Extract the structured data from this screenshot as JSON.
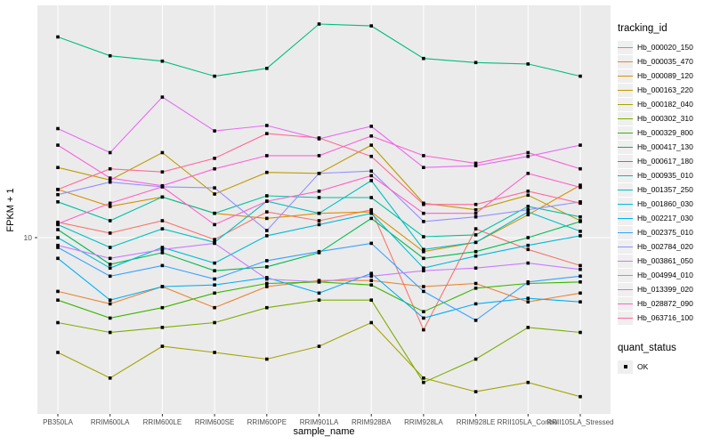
{
  "chart_data": {
    "type": "line",
    "title": "",
    "xlabel": "sample_name",
    "ylabel": "FPKM + 1",
    "y_scale": "log10",
    "ylim": [
      1.5,
      110
    ],
    "y_ticks": [
      {
        "label": "10",
        "value": 10
      }
    ],
    "grid": "major-only, white on grey panel",
    "legend_position": "right",
    "categories": [
      "PB350LA",
      "RRIM600LA",
      "RRIM600LE",
      "RRIM600SE",
      "RRIM600PE",
      "RRIM901LA",
      "RRIM928BA",
      "RRIM928LA",
      "RRIM928LE",
      "RRII105LA_Control",
      "RRII105LA_Stressed"
    ],
    "series": [
      {
        "name": "Hb_000020_150",
        "color": "#F8766D",
        "values": [
          11.8,
          10.5,
          12.0,
          9.8,
          13.2,
          12.0,
          13.5,
          3.7,
          11.0,
          8.8,
          7.4
        ]
      },
      {
        "name": "Hb_000035_470",
        "color": "#EA8331",
        "values": [
          5.6,
          4.9,
          5.9,
          4.7,
          5.9,
          6.3,
          6.3,
          5.9,
          6.1,
          5.0,
          5.5
        ]
      },
      {
        "name": "Hb_000089_120",
        "color": "#D89000",
        "values": [
          16.8,
          14.0,
          15.5,
          13.0,
          12.3,
          13.0,
          13.2,
          8.6,
          9.5,
          12.8,
          17.6
        ]
      },
      {
        "name": "Hb_000163_220",
        "color": "#C09B00",
        "values": [
          21.3,
          18.6,
          25.0,
          16.0,
          20.2,
          20.0,
          27.1,
          14.5,
          13.5,
          15.8,
          12.0
        ]
      },
      {
        "name": "Hb_000182_040",
        "color": "#A3A500",
        "values": [
          2.9,
          2.2,
          3.1,
          2.9,
          2.7,
          3.1,
          4.0,
          2.2,
          1.9,
          2.1,
          1.8
        ]
      },
      {
        "name": "Hb_000302_310",
        "color": "#7CAE00",
        "values": [
          4.0,
          3.6,
          3.8,
          4.0,
          4.7,
          5.1,
          5.1,
          2.1,
          2.7,
          3.8,
          3.6
        ]
      },
      {
        "name": "Hb_000329_800",
        "color": "#39B600",
        "values": [
          5.1,
          4.2,
          4.7,
          5.5,
          6.1,
          6.2,
          6.0,
          4.5,
          5.8,
          6.1,
          6.2
        ]
      },
      {
        "name": "Hb_000417_130",
        "color": "#00BB4E",
        "values": [
          10.9,
          7.5,
          8.5,
          7.0,
          7.3,
          8.5,
          12.3,
          8.0,
          8.6,
          10.0,
          11.9
        ]
      },
      {
        "name": "Hb_000617_180",
        "color": "#00BF7D",
        "values": [
          87,
          71,
          67,
          57,
          62,
          100,
          98,
          69,
          66,
          65,
          57
        ]
      },
      {
        "name": "Hb_000935_010",
        "color": "#00C1A3",
        "values": [
          14.7,
          12.0,
          15.5,
          13.0,
          15.7,
          15.4,
          15.4,
          10.1,
          10.3,
          14.0,
          12.5
        ]
      },
      {
        "name": "Hb_001357_250",
        "color": "#00BFC4",
        "values": [
          11.5,
          9.0,
          11.0,
          9.5,
          14.8,
          13.0,
          18.5,
          8.8,
          9.5,
          13.2,
          10.7
        ]
      },
      {
        "name": "Hb_001860_030",
        "color": "#00BBDA",
        "values": [
          10.0,
          7.2,
          9.0,
          7.6,
          10.2,
          11.5,
          13.0,
          7.2,
          8.2,
          9.2,
          10.2
        ]
      },
      {
        "name": "Hb_002217_030",
        "color": "#00B0F6",
        "values": [
          8.0,
          5.1,
          5.9,
          6.0,
          6.5,
          5.5,
          6.8,
          4.2,
          4.9,
          5.2,
          5.0
        ]
      },
      {
        "name": "Hb_002375_010",
        "color": "#35A2FF",
        "values": [
          9.0,
          6.6,
          7.4,
          6.4,
          7.8,
          8.6,
          9.4,
          5.6,
          4.1,
          6.2,
          6.6
        ]
      },
      {
        "name": "Hb_002784_020",
        "color": "#9590FF",
        "values": [
          15.9,
          18.2,
          17.3,
          17.1,
          10.8,
          20.0,
          20.5,
          11.9,
          12.5,
          13.5,
          14.7
        ]
      },
      {
        "name": "Hb_003861_050",
        "color": "#C77CFF",
        "values": [
          9.2,
          8.0,
          8.8,
          9.4,
          6.4,
          6.2,
          6.6,
          7.0,
          7.2,
          7.6,
          7.1
        ]
      },
      {
        "name": "Hb_004994_010",
        "color": "#E76BF3",
        "values": [
          32.4,
          25.0,
          45.5,
          31.6,
          33.5,
          29.0,
          33.2,
          21.3,
          21.7,
          24.0,
          27.1
        ]
      },
      {
        "name": "Hb_013399_020",
        "color": "#FA62DB",
        "values": [
          27.1,
          19.0,
          17.5,
          21.0,
          24.2,
          24.2,
          29.9,
          24.2,
          22.3,
          25.0,
          21.0
        ]
      },
      {
        "name": "Hb_028872_090",
        "color": "#FF61CC",
        "values": [
          11.6,
          14.5,
          17.3,
          11.5,
          14.8,
          16.5,
          19.5,
          13.0,
          13.0,
          20.0,
          17.2
        ]
      },
      {
        "name": "Hb_063716_100",
        "color": "#FF6A98",
        "values": [
          16.8,
          21.0,
          20.3,
          23.5,
          30.7,
          29.3,
          24.0,
          14.3,
          14.3,
          16.5,
          14.5
        ]
      }
    ]
  },
  "legend": {
    "title": "tracking_id"
  },
  "quant_legend": {
    "title": "quant_status",
    "items": [
      {
        "label": "OK"
      }
    ]
  },
  "colors": {
    "panel_bg": "#EBEBEB",
    "grid": "#FFFFFF",
    "point": "#000000",
    "tick_text": "#4D4D4D",
    "tick_mark": "#333333",
    "legend_key_bg": "#EFEFEF"
  }
}
